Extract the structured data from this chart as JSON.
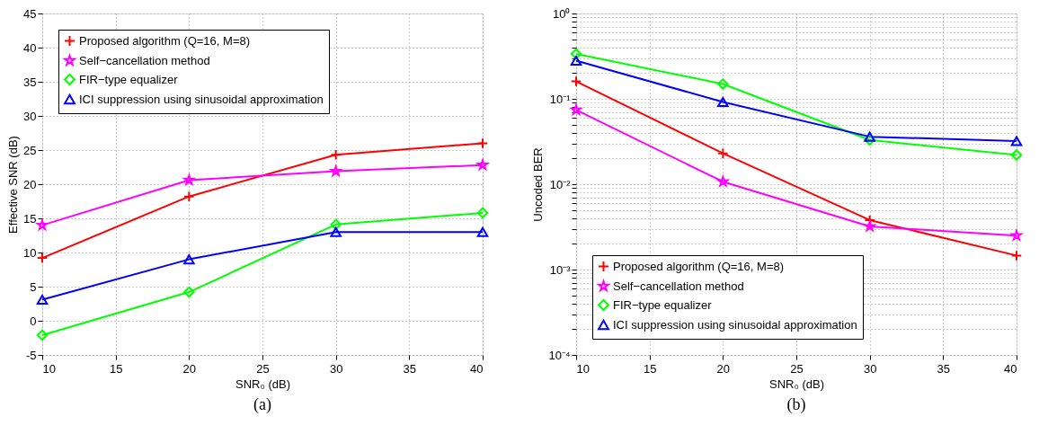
{
  "chart_data": [
    {
      "type": "line",
      "xlabel": "SNR₀ (dB)",
      "ylabel": "Effective SNR (dB)",
      "annotations": [
        "(a)"
      ],
      "x": [
        10,
        20,
        30,
        40
      ],
      "xlim": [
        10,
        40
      ],
      "xticks": [
        10,
        15,
        20,
        25,
        30,
        35,
        40
      ],
      "ylim": [
        -5,
        45
      ],
      "yticks": [
        -5,
        0,
        5,
        10,
        15,
        20,
        25,
        30,
        35,
        40,
        45
      ],
      "grid": true,
      "legend": "top left",
      "series": [
        {
          "name": "Proposed algorithm (Q=16, M=8)",
          "color": "#ff0000",
          "marker": "cross",
          "values": [
            9.2,
            18.2,
            24.3,
            26.0
          ]
        },
        {
          "name": "Self−cancellation method",
          "color": "#ff00ff",
          "marker": "star",
          "values": [
            14.0,
            20.6,
            21.9,
            22.8
          ]
        },
        {
          "name": "FIR−type equalizer",
          "color": "#00ff00",
          "marker": "diamond",
          "values": [
            -2.1,
            4.2,
            14.1,
            15.8
          ]
        },
        {
          "name": "ICI suppression using sinusoidal approximation",
          "color": "#0000ff",
          "marker": "triangle",
          "values": [
            3.1,
            9.0,
            13.0,
            13.0
          ]
        }
      ]
    },
    {
      "type": "line",
      "xlabel": "SNR₀ (dB)",
      "ylabel": "Uncoded BER",
      "annotations": [
        "(b)"
      ],
      "x": [
        10,
        20,
        30,
        40
      ],
      "xlim": [
        10,
        40
      ],
      "xticks": [
        10,
        15,
        20,
        25,
        30,
        35,
        40
      ],
      "log": "y",
      "ylim": [
        0.0001,
        1
      ],
      "yticks": [
        {
          "value": 0.0001,
          "label": "10⁻⁴"
        },
        {
          "value": 0.0002,
          "label": null
        },
        {
          "value": 0.0003,
          "label": null
        },
        {
          "value": 0.0004,
          "label": null
        },
        {
          "value": 0.0005,
          "label": null
        },
        {
          "value": 0.0006,
          "label": null
        },
        {
          "value": 0.0007,
          "label": null
        },
        {
          "value": 0.0008,
          "label": null
        },
        {
          "value": 0.0009,
          "label": null
        },
        {
          "value": 0.001,
          "label": "10⁻³"
        },
        {
          "value": 0.002,
          "label": null
        },
        {
          "value": 0.003,
          "label": null
        },
        {
          "value": 0.004,
          "label": null
        },
        {
          "value": 0.005,
          "label": null
        },
        {
          "value": 0.006,
          "label": null
        },
        {
          "value": 0.007,
          "label": null
        },
        {
          "value": 0.008,
          "label": null
        },
        {
          "value": 0.009,
          "label": null
        },
        {
          "value": 0.01,
          "label": "10⁻²"
        },
        {
          "value": 0.02,
          "label": null
        },
        {
          "value": 0.03,
          "label": null
        },
        {
          "value": 0.04,
          "label": null
        },
        {
          "value": 0.05,
          "label": null
        },
        {
          "value": 0.06,
          "label": null
        },
        {
          "value": 0.07,
          "label": null
        },
        {
          "value": 0.08,
          "label": null
        },
        {
          "value": 0.09,
          "label": null
        },
        {
          "value": 0.1,
          "label": "10⁻¹"
        },
        {
          "value": 0.2,
          "label": null
        },
        {
          "value": 0.3,
          "label": null
        },
        {
          "value": 0.4,
          "label": null
        },
        {
          "value": 0.5,
          "label": null
        },
        {
          "value": 0.6,
          "label": null
        },
        {
          "value": 0.7,
          "label": null
        },
        {
          "value": 0.8,
          "label": null
        },
        {
          "value": 0.9,
          "label": null
        },
        {
          "value": 1,
          "label": "10⁰"
        }
      ],
      "grid": true,
      "legend": "bottom left",
      "series": [
        {
          "name": "Proposed algorithm (Q=16, M=8)",
          "color": "#ff0000",
          "marker": "cross",
          "values": [
            0.16,
            0.023,
            0.0038,
            0.00146
          ]
        },
        {
          "name": "Self−cancellation method",
          "color": "#ff00ff",
          "marker": "star",
          "values": [
            0.074,
            0.0107,
            0.0032,
            0.0025
          ]
        },
        {
          "name": "FIR−type equalizer",
          "color": "#00ff00",
          "marker": "diamond",
          "values": [
            0.336,
            0.149,
            0.033,
            0.022
          ]
        },
        {
          "name": "ICI suppression using sinusoidal approximation",
          "color": "#0000ff",
          "marker": "triangle",
          "values": [
            0.28,
            0.092,
            0.036,
            0.032
          ]
        }
      ]
    }
  ]
}
